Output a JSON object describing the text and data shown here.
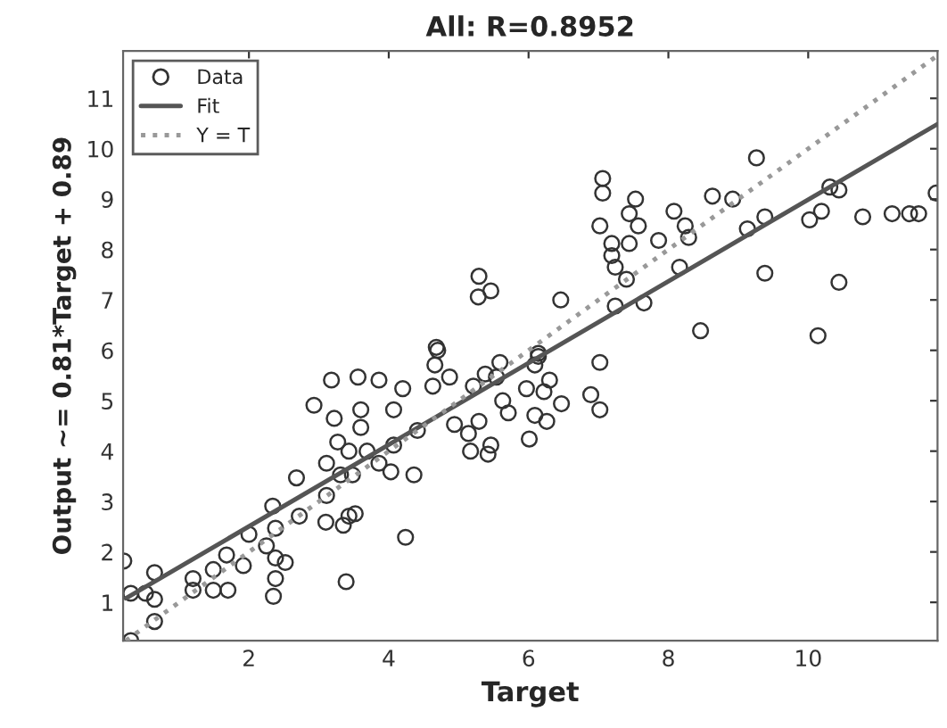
{
  "chart_data": {
    "type": "scatter",
    "title": "All: R=0.8952",
    "xlabel": "Target",
    "ylabel": "Output ~= 0.81*Target + 0.89",
    "xlim": [
      0.2,
      11.85
    ],
    "ylim": [
      0.24,
      11.94
    ],
    "xticks": [
      2,
      4,
      6,
      8,
      10
    ],
    "yticks": [
      1,
      2,
      3,
      4,
      5,
      6,
      7,
      8,
      9,
      10,
      11
    ],
    "grid": false,
    "legend": "top left",
    "series": [
      {
        "name": "Data",
        "marker": "circle",
        "color": "#333333",
        "x": [
          0.31,
          0.21,
          0.31,
          0.52,
          0.65,
          0.65,
          0.65,
          1.2,
          1.2,
          1.49,
          1.49,
          1.7,
          1.68,
          1.92,
          2.0,
          2.25,
          2.35,
          2.38,
          2.38,
          2.38,
          2.52,
          2.34,
          2.72,
          2.68,
          2.93,
          3.1,
          3.11,
          3.11,
          3.18,
          3.22,
          3.27,
          3.31,
          3.35,
          3.39,
          3.43,
          3.43,
          3.52,
          3.56,
          3.6,
          3.6,
          3.48,
          3.69,
          3.86,
          3.86,
          4.07,
          4.03,
          4.07,
          4.2,
          4.24,
          4.36,
          4.41,
          4.63,
          4.68,
          4.66,
          4.87,
          4.94,
          5.14,
          5.17,
          5.21,
          5.29,
          5.38,
          5.42,
          5.46,
          5.54,
          5.59,
          5.63,
          5.71,
          5.97,
          6.01,
          6.09,
          6.09,
          6.14,
          6.22,
          6.26,
          6.3,
          6.47,
          6.89,
          7.02,
          7.02,
          8.46,
          10.14,
          4.7,
          5.29,
          5.28,
          5.46,
          6.14,
          6.46,
          7.06,
          7.06,
          7.02,
          7.19,
          7.19,
          7.24,
          7.4,
          7.24,
          7.53,
          7.44,
          7.57,
          7.44,
          7.65,
          7.86,
          8.08,
          8.24,
          8.29,
          8.16,
          8.63,
          8.92,
          9.13,
          9.26,
          9.38,
          9.38,
          10.02,
          10.19,
          10.31,
          10.44,
          10.44,
          10.78,
          11.2,
          11.45,
          11.58,
          11.83
        ],
        "values": [
          0.24,
          1.82,
          1.18,
          1.18,
          1.06,
          1.59,
          0.62,
          1.47,
          1.24,
          1.24,
          1.65,
          1.24,
          1.94,
          1.73,
          2.35,
          2.12,
          1.12,
          1.47,
          1.88,
          2.47,
          1.79,
          2.91,
          2.71,
          3.47,
          4.91,
          2.59,
          3.12,
          3.76,
          5.41,
          4.65,
          4.18,
          3.53,
          2.53,
          1.41,
          4.0,
          2.71,
          2.76,
          5.47,
          4.47,
          4.82,
          3.53,
          4.0,
          5.41,
          3.76,
          4.82,
          3.59,
          4.12,
          5.24,
          2.29,
          3.53,
          4.41,
          5.29,
          6.06,
          5.71,
          5.47,
          4.53,
          4.35,
          4.0,
          5.29,
          4.59,
          5.53,
          3.94,
          4.12,
          5.47,
          5.76,
          5.0,
          4.76,
          5.24,
          4.24,
          5.71,
          4.71,
          5.94,
          5.18,
          4.59,
          5.41,
          4.94,
          5.12,
          5.76,
          4.82,
          6.39,
          6.29,
          6.0,
          7.47,
          7.06,
          7.18,
          5.88,
          7.0,
          9.41,
          9.12,
          8.47,
          8.12,
          7.88,
          7.65,
          7.41,
          6.88,
          9.0,
          8.71,
          8.47,
          8.12,
          6.94,
          8.18,
          8.76,
          8.47,
          8.24,
          7.65,
          9.06,
          9.0,
          8.41,
          9.82,
          8.65,
          7.53,
          8.59,
          8.76,
          9.24,
          9.18,
          7.35,
          8.65,
          8.71,
          8.71,
          8.71,
          9.12
        ]
      },
      {
        "name": "Fit",
        "type": "line",
        "line_style": "solid",
        "color": "#555555",
        "x": [
          0.24,
          11.85
        ],
        "values": [
          1.08,
          10.49
        ]
      },
      {
        "name": "Y = T",
        "type": "line",
        "line_style": "dotted",
        "color": "#999999",
        "x": [
          0.24,
          11.85
        ],
        "values": [
          0.24,
          11.85
        ]
      }
    ]
  }
}
